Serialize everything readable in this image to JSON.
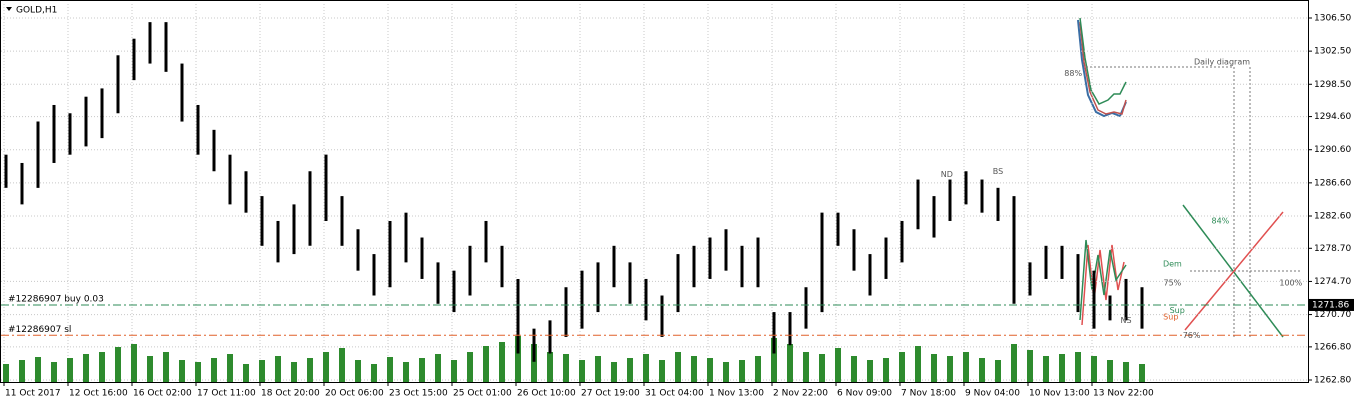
{
  "chart_data": {
    "type": "ohlc",
    "title": "GOLD,H1",
    "color": "#000000",
    "volume_color": "#2e8b2e",
    "categories": [
      "11 Oct 2017",
      null,
      null,
      null,
      "12 Oct 16:00",
      null,
      null,
      null,
      "16 Oct 02:00",
      null,
      null,
      null,
      "17 Oct 11:00",
      null,
      null,
      null,
      "18 Oct 20:00",
      null,
      null,
      null,
      "20 Oct 06:00",
      null,
      null,
      null,
      "23 Oct 15:00",
      null,
      null,
      null,
      "25 Oct 01:00",
      null,
      null,
      null,
      "26 Oct 10:00",
      null,
      null,
      null,
      "27 Oct 19:00",
      null,
      null,
      null,
      "31 Oct 04:00",
      null,
      null,
      null,
      "1 Nov 13:00",
      null,
      null,
      null,
      "2 Nov 22:00",
      null,
      null,
      null,
      "6 Nov 09:00",
      null,
      null,
      null,
      "7 Nov 18:00",
      null,
      null,
      null,
      "9 Nov 04:00",
      null,
      null,
      null,
      "10 Nov 13:00",
      null,
      null,
      null,
      "13 Nov 22:00",
      null,
      null,
      null
    ],
    "low": [
      1286,
      1284,
      1286,
      1289,
      1290,
      1291,
      1292,
      1295,
      1299,
      1301,
      1300,
      1294,
      1290,
      1288,
      1284,
      1283,
      1279,
      1277,
      1278,
      1279,
      1282,
      1279,
      1276,
      1273,
      1274,
      1277,
      1275,
      1272,
      1271,
      1273,
      1277,
      1274,
      1266,
      1265,
      1266,
      1268,
      1269,
      1271,
      1274,
      1272,
      1270,
      1268,
      1271,
      1274,
      1275,
      1276,
      1274,
      1274,
      1266,
      1267,
      1269,
      1271,
      1279,
      1276,
      1273,
      1275,
      1277,
      1281,
      1280,
      1282,
      1284,
      1283,
      1282,
      1272,
      1273,
      1275,
      1275,
      1271,
      1269,
      1270,
      1270,
      1269
    ],
    "high": [
      1290,
      1289,
      1294,
      1296,
      1295,
      1297,
      1298,
      1302,
      1304,
      1306,
      1306,
      1301,
      1296,
      1293,
      1290,
      1288,
      1285,
      1282,
      1284,
      1288,
      1290,
      1285,
      1281,
      1278,
      1282,
      1283,
      1280,
      1277,
      1276,
      1279,
      1282,
      1279,
      1275,
      1269,
      1270,
      1274,
      1276,
      1277,
      1279,
      1277,
      1275,
      1273,
      1278,
      1279,
      1280,
      1281,
      1279,
      1280,
      1271,
      1271,
      1274,
      1283,
      1283,
      1281,
      1278,
      1280,
      1282,
      1287,
      1285,
      1287,
      1288,
      1287,
      1286,
      1285,
      1277,
      1279,
      1279,
      1278,
      1276,
      1273,
      1275,
      1274
    ],
    "volume": [
      18,
      22,
      25,
      20,
      24,
      28,
      30,
      35,
      38,
      26,
      30,
      22,
      20,
      24,
      28,
      18,
      22,
      26,
      20,
      24,
      30,
      34,
      22,
      18,
      25,
      20,
      24,
      28,
      22,
      30,
      36,
      40,
      46,
      38,
      30,
      28,
      22,
      26,
      20,
      24,
      28,
      22,
      30,
      26,
      24,
      20,
      22,
      26,
      44,
      38,
      30,
      28,
      34,
      26,
      22,
      24,
      30,
      36,
      28,
      26,
      30,
      24,
      22,
      38,
      32,
      26,
      28,
      30,
      26,
      22,
      20,
      18
    ],
    "vlim": [
      0,
      60
    ],
    "ylim": [
      1262.56,
      1308.19
    ],
    "yticks": [
      {
        "value": 1306.5,
        "label": "1306.50"
      },
      {
        "value": 1302.5,
        "label": "1302.50"
      },
      {
        "value": 1298.5,
        "label": "1298.50"
      },
      {
        "value": 1294.6,
        "label": "1294.60"
      },
      {
        "value": 1290.6,
        "label": "1290.60"
      },
      {
        "value": 1286.6,
        "label": "1286.60"
      },
      {
        "value": 1282.6,
        "label": "1282.60"
      },
      {
        "value": 1278.7,
        "label": "1278.70"
      },
      {
        "value": 1274.7,
        "label": "1274.70"
      },
      {
        "value": 1270.7,
        "label": "1270.70"
      },
      {
        "value": 1266.8,
        "label": "1266.80"
      },
      {
        "value": 1262.8,
        "label": "1262.80"
      }
    ],
    "grid": true,
    "levels": [
      {
        "name": "#12286907 buy 0.03",
        "value": 1271.86,
        "color": "#2e8b57"
      },
      {
        "name": "#12286907 sl",
        "value": 1268.2,
        "color": "#e0602a"
      }
    ],
    "annotations": [
      {
        "text": "ND",
        "x": 58.8,
        "y": 1287.6,
        "color": "#555555"
      },
      {
        "text": "BS",
        "x": 62,
        "y": 1288,
        "color": "#555555"
      },
      {
        "text": "NS",
        "x": 70,
        "y": 1270,
        "color": "#555555"
      },
      {
        "text": "Daily diagram",
        "x": 76,
        "y": 1301.2,
        "color": "#555555"
      },
      {
        "text": "88%",
        "x": 66.7,
        "y": 1299.8,
        "color": "#555555"
      },
      {
        "text": "84%",
        "x": 75.9,
        "y": 1282,
        "color": "#2e8b57"
      },
      {
        "text": "Dem",
        "x": 72.9,
        "y": 1276.8,
        "color": "#2e8b57"
      },
      {
        "text": "75%",
        "x": 72.9,
        "y": 1274.5,
        "color": "#555555"
      },
      {
        "text": "100%",
        "x": 80.3,
        "y": 1274.5,
        "color": "#555555"
      },
      {
        "text": "Sup",
        "x": 73.2,
        "y": 1271.2,
        "color": "#2e8b57"
      },
      {
        "text": "Sup",
        "x": 72.8,
        "y": 1270.4,
        "color": "#e0602a"
      },
      {
        "text": "76%",
        "x": 74.1,
        "y": 1268.2,
        "color": "#555555"
      }
    ]
  }
}
